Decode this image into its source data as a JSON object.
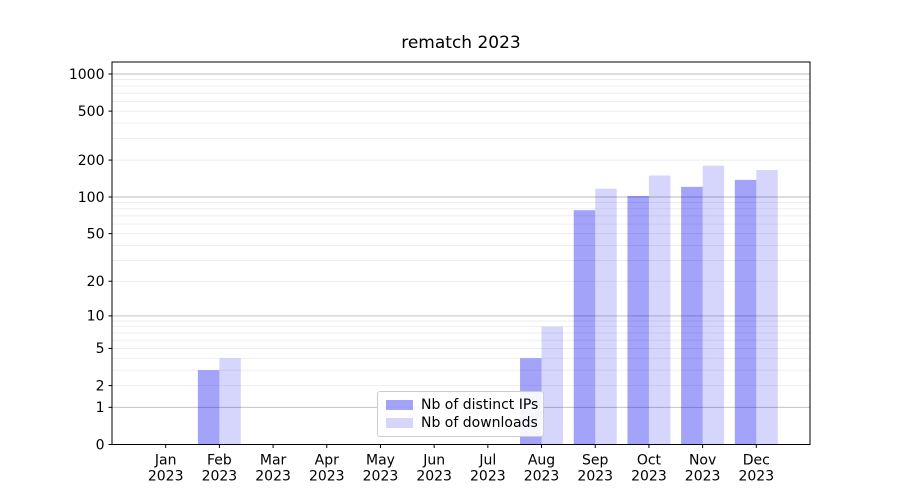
{
  "chart_data": {
    "type": "bar",
    "title": "rematch 2023",
    "categories": [
      "Jan",
      "Feb",
      "Mar",
      "Apr",
      "May",
      "Jun",
      "Jul",
      "Aug",
      "Sep",
      "Oct",
      "Nov",
      "Dec"
    ],
    "year_label": "2023",
    "series": [
      {
        "name": "Nb of distinct IPs",
        "color": "#0000f0",
        "alpha": 0.36,
        "values": [
          0,
          3,
          0,
          0,
          0,
          0,
          0,
          4,
          78,
          102,
          121,
          138
        ]
      },
      {
        "name": "Nb of downloads",
        "color": "#0000f0",
        "alpha": 0.16,
        "values": [
          0,
          4,
          0,
          0,
          0,
          0,
          0,
          8,
          117,
          150,
          180,
          166
        ]
      }
    ],
    "yscale": "log1p",
    "ylim": [
      0,
      1250
    ],
    "yticks": [
      0,
      1,
      2,
      5,
      10,
      20,
      50,
      100,
      200,
      500,
      1000
    ],
    "xlabel": "",
    "ylabel": "",
    "grid": {
      "major_values": [
        1,
        10,
        100,
        1000
      ],
      "minor_values": [
        2,
        3,
        4,
        5,
        6,
        7,
        8,
        9,
        20,
        30,
        40,
        50,
        60,
        70,
        80,
        90,
        200,
        300,
        400,
        500,
        600,
        700,
        800,
        900
      ],
      "major_color": "#bbbbbb",
      "minor_color": "#e7e7e7"
    },
    "legend": {
      "position": "lower center",
      "items": [
        "Nb of distinct IPs",
        "Nb of downloads"
      ]
    },
    "axis_color": "#000000",
    "tick_label_color": "#000000"
  }
}
